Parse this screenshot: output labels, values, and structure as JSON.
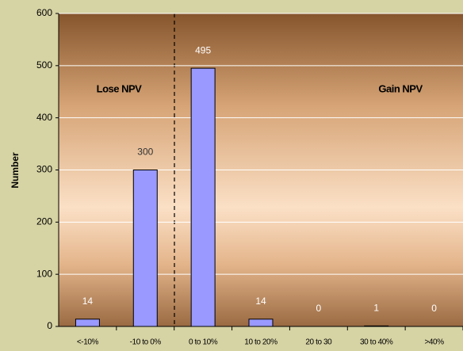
{
  "chart_data": {
    "type": "bar",
    "y_label": "Number",
    "annotations": [
      "Lose NPV",
      "Gain NPV"
    ],
    "categories": [
      "<-10%",
      "-10 to 0%",
      "0 to 10%",
      "10 to 20%",
      "20 to 30",
      "30 to 40%",
      ">40%"
    ],
    "values": [
      14,
      300,
      495,
      14,
      0,
      1,
      0
    ],
    "color": "#9999ff",
    "ylim": [
      0,
      600
    ],
    "yticks": [
      0,
      100,
      200,
      300,
      400,
      500,
      600
    ],
    "grid": true
  }
}
